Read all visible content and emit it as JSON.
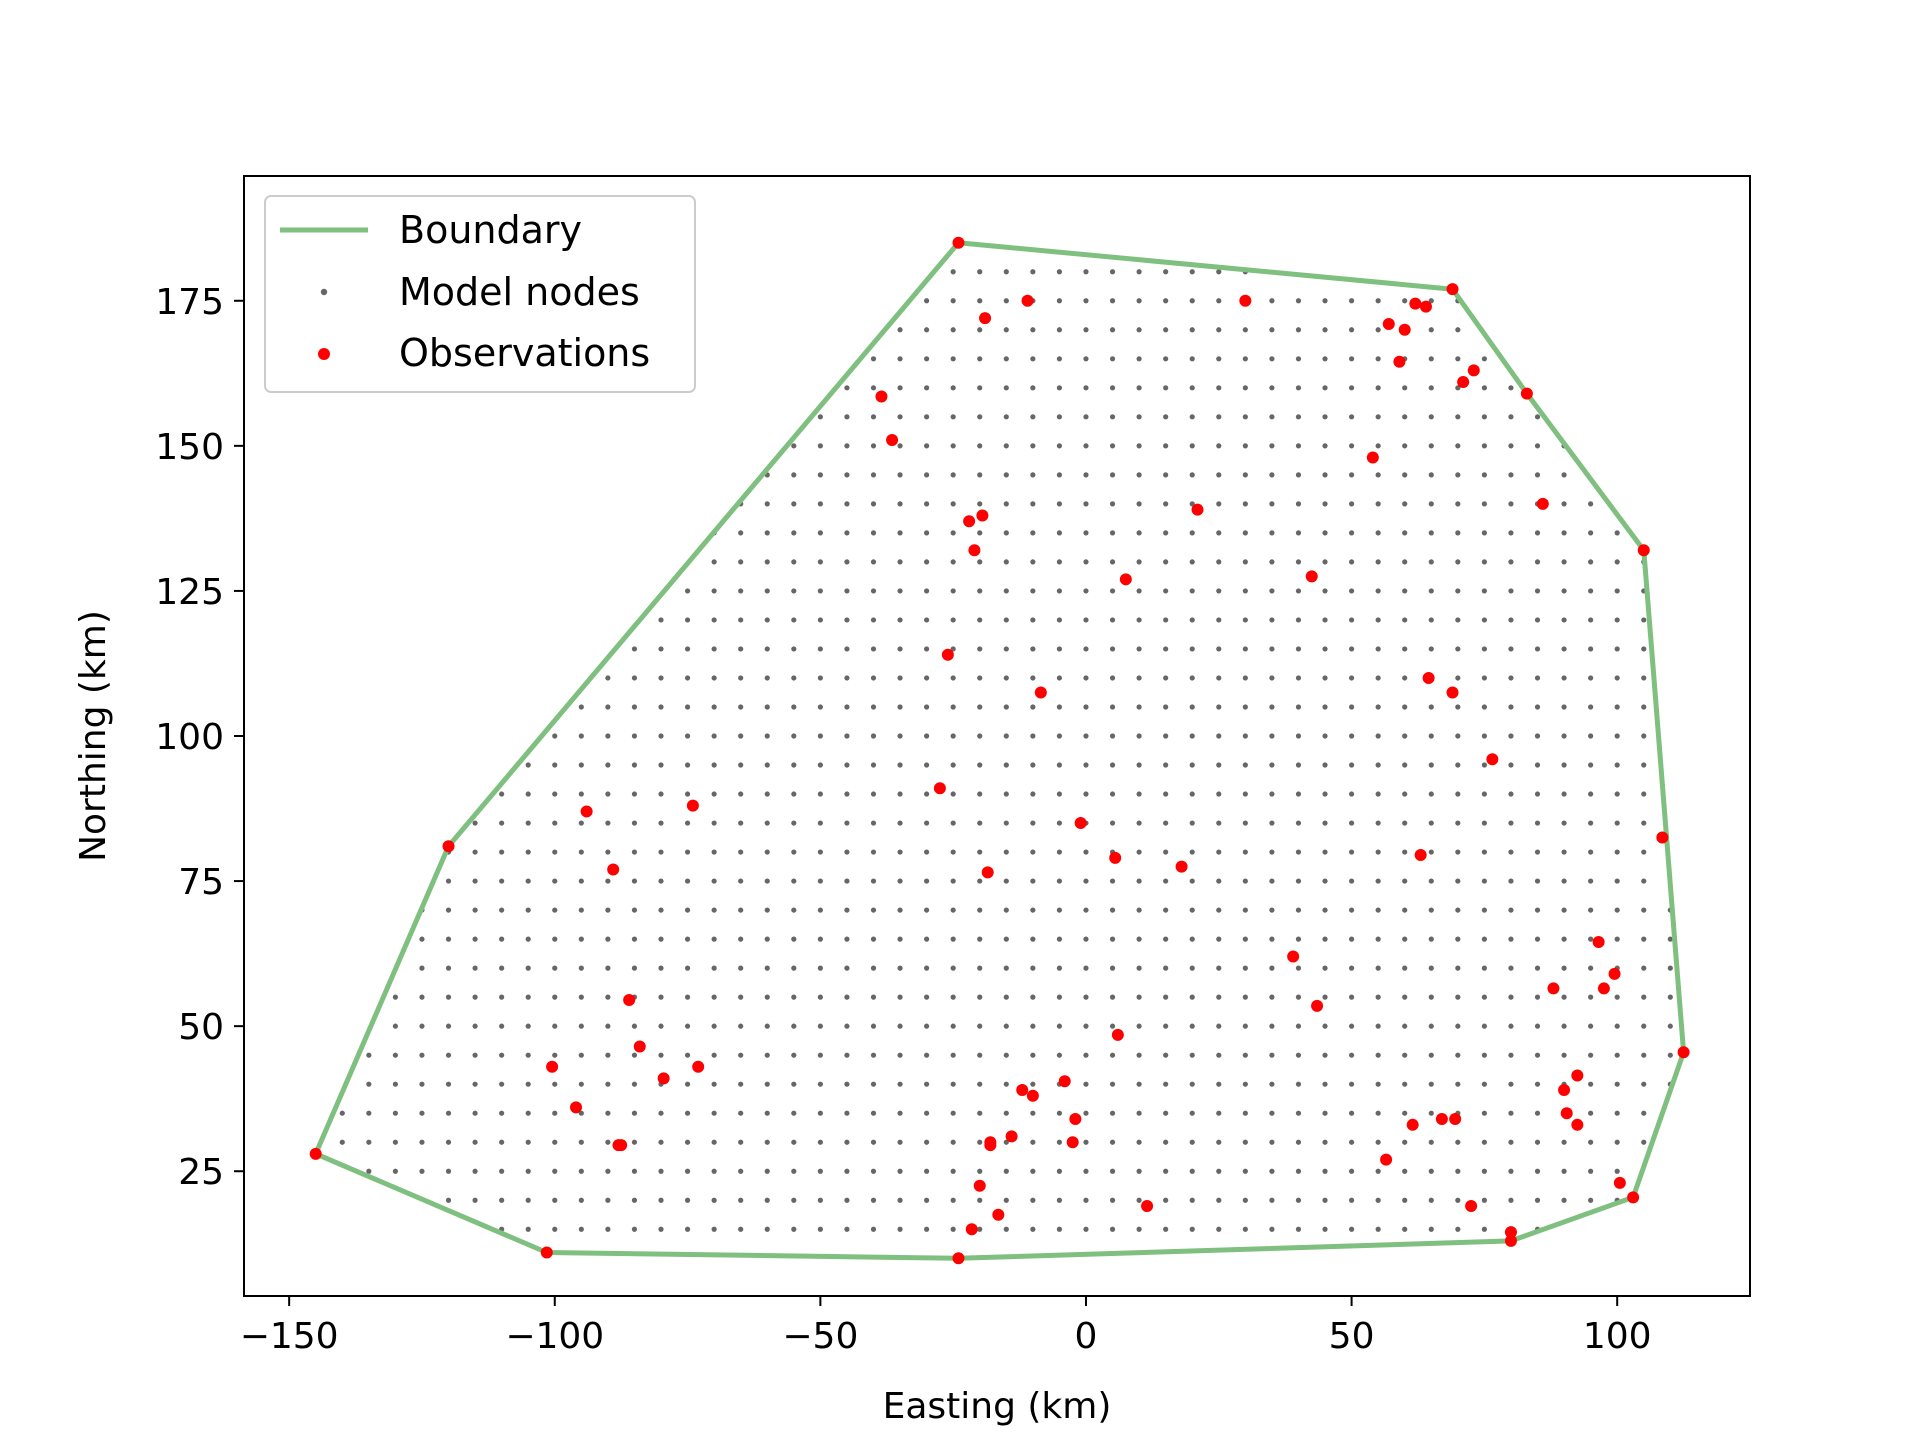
{
  "chart_data": {
    "type": "scatter",
    "title": "",
    "xlabel": "Easting (km)",
    "ylabel": "Northing (km)",
    "xlim": [
      -158.5,
      125
    ],
    "ylim": [
      3.5,
      196.5
    ],
    "xticks": [
      -150,
      -100,
      -50,
      0,
      50,
      100
    ],
    "xtick_labels": [
      "−150",
      "−100",
      "−50",
      "0",
      "50",
      "100"
    ],
    "yticks": [
      25,
      50,
      75,
      100,
      125,
      150,
      175
    ],
    "ytick_labels": [
      "25",
      "50",
      "75",
      "100",
      "125",
      "150",
      "175"
    ],
    "grid": false,
    "legend_position": "upper-left",
    "legend": {
      "boundary": "Boundary",
      "model_nodes": "Model nodes",
      "observations": "Observations"
    },
    "colors": {
      "boundary": "#7fbf7f",
      "model_nodes": "#404040",
      "observations": "#ff0000"
    },
    "model_node_grid": {
      "x_start": -140,
      "x_end": 110,
      "x_step": 5,
      "y_start": 15,
      "y_end": 180,
      "y_step": 5
    },
    "series": [
      {
        "name": "Boundary",
        "kind": "line",
        "x": [
          -24,
          69,
          83,
          105,
          112.5,
          103,
          80,
          -24,
          -101.5,
          -145,
          -120,
          -24
        ],
        "y": [
          185,
          177,
          159,
          132,
          45.5,
          20.5,
          13,
          10,
          11,
          28,
          81,
          185
        ]
      },
      {
        "name": "Observations",
        "kind": "scatter",
        "points": [
          [
            -24,
            185
          ],
          [
            69,
            177
          ],
          [
            83,
            159
          ],
          [
            105,
            132
          ],
          [
            112.5,
            45.5
          ],
          [
            103,
            20.5
          ],
          [
            80,
            13
          ],
          [
            -24,
            10
          ],
          [
            -101.5,
            11
          ],
          [
            -145,
            28
          ],
          [
            -120,
            81
          ],
          [
            -19,
            172
          ],
          [
            -11,
            175
          ],
          [
            30,
            175
          ],
          [
            57,
            171
          ],
          [
            60,
            170
          ],
          [
            62,
            174.5
          ],
          [
            64,
            174
          ],
          [
            59,
            164.5
          ],
          [
            71,
            161
          ],
          [
            73,
            163
          ],
          [
            -38.5,
            158.5
          ],
          [
            -36.5,
            151
          ],
          [
            54,
            148
          ],
          [
            86,
            140
          ],
          [
            21,
            139
          ],
          [
            -22,
            137
          ],
          [
            -19.5,
            138
          ],
          [
            -21,
            132
          ],
          [
            7.5,
            127
          ],
          [
            42.5,
            127.5
          ],
          [
            -26,
            114
          ],
          [
            -8.5,
            107.5
          ],
          [
            64.5,
            110
          ],
          [
            69,
            107.5
          ],
          [
            76.5,
            96
          ],
          [
            -27.5,
            91
          ],
          [
            -74,
            88
          ],
          [
            -94,
            87
          ],
          [
            -1,
            85
          ],
          [
            108.5,
            82.5
          ],
          [
            5.5,
            79
          ],
          [
            18,
            77.5
          ],
          [
            63,
            79.5
          ],
          [
            -89,
            77
          ],
          [
            -18.5,
            76.5
          ],
          [
            39,
            62
          ],
          [
            43.5,
            53.5
          ],
          [
            96.5,
            64.5
          ],
          [
            99.5,
            59
          ],
          [
            88,
            56.5
          ],
          [
            97.5,
            56.5
          ],
          [
            -86,
            54.5
          ],
          [
            -84,
            46.5
          ],
          [
            6,
            48.5
          ],
          [
            -100.5,
            43
          ],
          [
            -73,
            43
          ],
          [
            -79.5,
            41
          ],
          [
            -12,
            39
          ],
          [
            -10,
            38
          ],
          [
            -4,
            40.5
          ],
          [
            92.5,
            41.5
          ],
          [
            90,
            39
          ],
          [
            -96,
            36
          ],
          [
            -2,
            34
          ],
          [
            61.5,
            33
          ],
          [
            67,
            34
          ],
          [
            69.5,
            34
          ],
          [
            90.5,
            35
          ],
          [
            92.5,
            33
          ],
          [
            -14,
            31
          ],
          [
            -18,
            30
          ],
          [
            -18,
            29.5
          ],
          [
            -2.5,
            30
          ],
          [
            -87.5,
            29.5
          ],
          [
            -88,
            29.5
          ],
          [
            56.5,
            27
          ],
          [
            100.5,
            23
          ],
          [
            -20,
            22.5
          ],
          [
            -16.5,
            17.5
          ],
          [
            11.5,
            19
          ],
          [
            72.5,
            19
          ],
          [
            -21.5,
            15
          ],
          [
            80,
            14.5
          ]
        ]
      }
    ]
  }
}
